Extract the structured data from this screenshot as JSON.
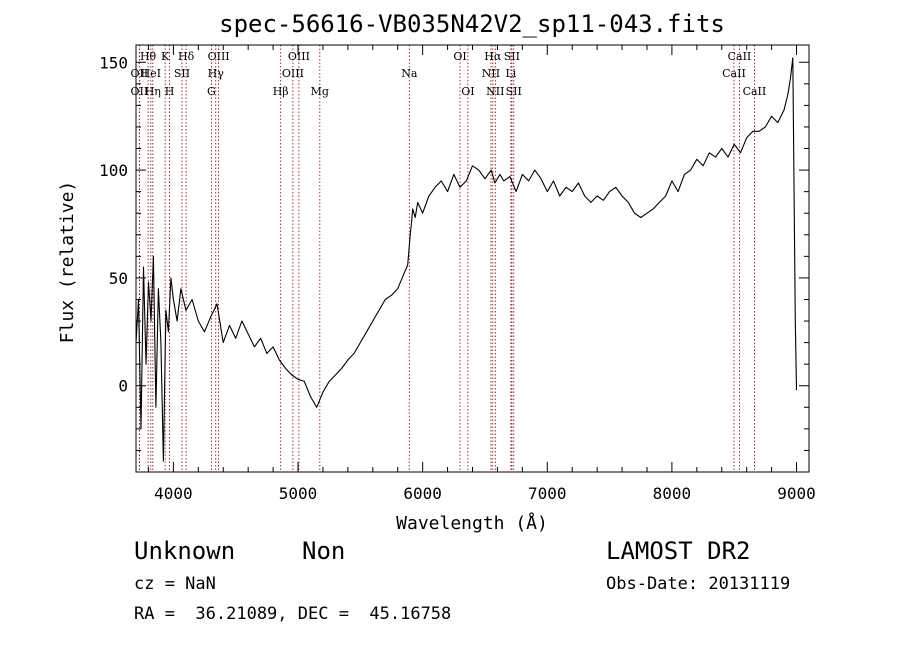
{
  "chart_data": {
    "type": "line",
    "title": "spec-56616-VB035N42V2_sp11-043.fits",
    "xlabel": "Wavelength (Å)",
    "ylabel": "Flux (relative)",
    "xlim": [
      3700,
      9100
    ],
    "ylim": [
      -40,
      158
    ],
    "x_ticks": [
      4000,
      5000,
      6000,
      7000,
      8000,
      9000
    ],
    "y_ticks": [
      0,
      50,
      100,
      150
    ],
    "line_color": "#000000",
    "marker_color": "#8b0000",
    "spectrum": {
      "x": [
        3700,
        3720,
        3740,
        3760,
        3780,
        3800,
        3820,
        3840,
        3860,
        3880,
        3900,
        3920,
        3940,
        3960,
        3980,
        4000,
        4030,
        4060,
        4100,
        4150,
        4200,
        4250,
        4300,
        4350,
        4400,
        4450,
        4500,
        4550,
        4600,
        4650,
        4700,
        4750,
        4800,
        4850,
        4900,
        4950,
        5000,
        5050,
        5100,
        5150,
        5200,
        5250,
        5300,
        5350,
        5400,
        5450,
        5500,
        5550,
        5600,
        5650,
        5700,
        5750,
        5800,
        5850,
        5880,
        5900,
        5910,
        5920,
        5940,
        5960,
        6000,
        6050,
        6100,
        6150,
        6200,
        6250,
        6300,
        6350,
        6400,
        6450,
        6500,
        6550,
        6580,
        6620,
        6650,
        6700,
        6750,
        6800,
        6850,
        6900,
        6950,
        7000,
        7050,
        7100,
        7150,
        7200,
        7250,
        7300,
        7350,
        7400,
        7450,
        7500,
        7550,
        7600,
        7650,
        7700,
        7750,
        7800,
        7850,
        7900,
        7950,
        8000,
        8050,
        8100,
        8150,
        8200,
        8250,
        8300,
        8350,
        8400,
        8450,
        8500,
        8550,
        8600,
        8650,
        8700,
        8750,
        8800,
        8850,
        8900,
        8930,
        8950,
        8970,
        8990,
        9000
      ],
      "y": [
        20,
        40,
        -20,
        55,
        10,
        48,
        30,
        60,
        -10,
        45,
        20,
        -35,
        35,
        25,
        50,
        40,
        30,
        45,
        35,
        40,
        30,
        25,
        32,
        38,
        20,
        28,
        22,
        30,
        24,
        18,
        22,
        15,
        18,
        12,
        8,
        5,
        3,
        2,
        -5,
        -10,
        -3,
        2,
        5,
        8,
        12,
        15,
        20,
        25,
        30,
        35,
        40,
        42,
        45,
        52,
        56,
        70,
        75,
        82,
        78,
        85,
        80,
        88,
        92,
        95,
        90,
        98,
        92,
        95,
        102,
        100,
        96,
        100,
        94,
        98,
        95,
        97,
        90,
        98,
        95,
        100,
        96,
        90,
        95,
        88,
        92,
        90,
        94,
        88,
        85,
        88,
        86,
        90,
        92,
        88,
        85,
        80,
        78,
        80,
        82,
        85,
        88,
        95,
        90,
        98,
        100,
        105,
        102,
        108,
        106,
        110,
        106,
        112,
        108,
        115,
        118,
        118,
        120,
        125,
        122,
        128,
        135,
        142,
        152,
        30,
        -2
      ]
    },
    "lines": [
      {
        "label": "OII",
        "wavelength": 3727,
        "row": 2
      },
      {
        "label": "OII",
        "wavelength": 3727,
        "row": 3
      },
      {
        "label": "Hθ",
        "wavelength": 3797,
        "row": 1
      },
      {
        "label": "HeI",
        "wavelength": 3819,
        "row": 2
      },
      {
        "label": "Hη",
        "wavelength": 3835,
        "row": 3
      },
      {
        "label": "K",
        "wavelength": 3934,
        "row": 1
      },
      {
        "label": "SII",
        "wavelength": 4069,
        "row": 2
      },
      {
        "label": "H",
        "wavelength": 3969,
        "row": 3
      },
      {
        "label": "Hδ",
        "wavelength": 4102,
        "row": 1
      },
      {
        "label": "OIII",
        "wavelength": 4363,
        "row": 1
      },
      {
        "label": "Hγ",
        "wavelength": 4340,
        "row": 2
      },
      {
        "label": "G",
        "wavelength": 4305,
        "row": 3
      },
      {
        "label": "Hβ",
        "wavelength": 4861,
        "row": 3
      },
      {
        "label": "OIII",
        "wavelength": 5007,
        "row": 1
      },
      {
        "label": "OIII",
        "wavelength": 4959,
        "row": 2
      },
      {
        "label": "Mg",
        "wavelength": 5175,
        "row": 3
      },
      {
        "label": "Na",
        "wavelength": 5893,
        "row": 2
      },
      {
        "label": "OI",
        "wavelength": 6300,
        "row": 1
      },
      {
        "label": "OI",
        "wavelength": 6363,
        "row": 3
      },
      {
        "label": "Hα",
        "wavelength": 6563,
        "row": 1
      },
      {
        "label": "NII",
        "wavelength": 6548,
        "row": 2
      },
      {
        "label": "NII",
        "wavelength": 6583,
        "row": 3
      },
      {
        "label": "SII",
        "wavelength": 6716,
        "row": 1
      },
      {
        "label": "Li",
        "wavelength": 6708,
        "row": 2
      },
      {
        "label": "SII",
        "wavelength": 6731,
        "row": 3
      },
      {
        "label": "CaII",
        "wavelength": 8542,
        "row": 1
      },
      {
        "label": "CaII",
        "wavelength": 8498,
        "row": 2
      },
      {
        "label": "CaII",
        "wavelength": 8662,
        "row": 3
      }
    ]
  },
  "info": {
    "object_class": "Unknown",
    "object_subclass": "Non",
    "survey": "LAMOST DR2",
    "redshift": "cz = NaN",
    "obs_date": "Obs-Date: 20131119",
    "coords": "RA =  36.21089, DEC =  45.16758"
  }
}
